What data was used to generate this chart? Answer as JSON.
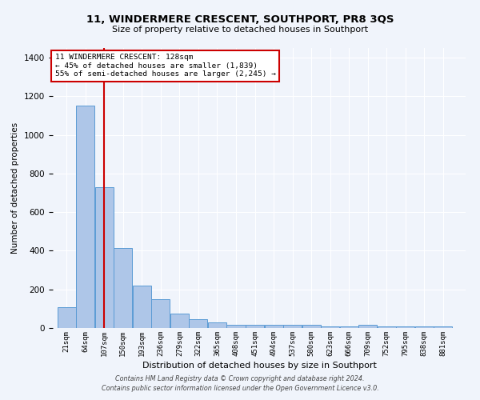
{
  "title": "11, WINDERMERE CRESCENT, SOUTHPORT, PR8 3QS",
  "subtitle": "Size of property relative to detached houses in Southport",
  "xlabel": "Distribution of detached houses by size in Southport",
  "ylabel": "Number of detached properties",
  "bar_color": "#aec6e8",
  "bar_edge_color": "#5b9bd5",
  "background_color": "#f0f4fb",
  "annotation_box_color": "#cc0000",
  "annotation_line_color": "#cc0000",
  "property_line_x": 128,
  "annotation_text_line1": "11 WINDERMERE CRESCENT: 128sqm",
  "annotation_text_line2": "← 45% of detached houses are smaller (1,839)",
  "annotation_text_line3": "55% of semi-detached houses are larger (2,245) →",
  "categories": [
    "21sqm",
    "64sqm",
    "107sqm",
    "150sqm",
    "193sqm",
    "236sqm",
    "279sqm",
    "322sqm",
    "365sqm",
    "408sqm",
    "451sqm",
    "494sqm",
    "537sqm",
    "580sqm",
    "623sqm",
    "666sqm",
    "709sqm",
    "752sqm",
    "795sqm",
    "838sqm",
    "881sqm"
  ],
  "bin_edges": [
    21,
    64,
    107,
    150,
    193,
    236,
    279,
    322,
    365,
    408,
    451,
    494,
    537,
    580,
    623,
    666,
    709,
    752,
    795,
    838,
    881,
    924
  ],
  "bar_heights": [
    107,
    1152,
    730,
    415,
    218,
    149,
    75,
    47,
    30,
    18,
    15,
    15,
    15,
    15,
    10,
    7,
    15,
    7,
    7,
    7,
    7
  ],
  "ylim": [
    0,
    1450
  ],
  "footnote": "Contains HM Land Registry data © Crown copyright and database right 2024.\nContains public sector information licensed under the Open Government Licence v3.0."
}
